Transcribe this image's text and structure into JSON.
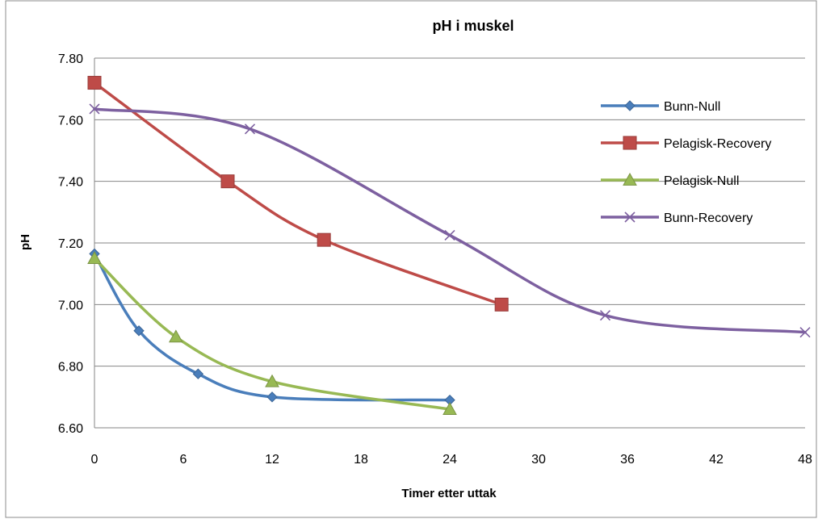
{
  "chart_data": {
    "type": "line",
    "title": "pH i muskel",
    "xlabel": "Timer etter uttak",
    "ylabel": "pH",
    "xlim": [
      0,
      48
    ],
    "ylim": [
      6.6,
      7.8
    ],
    "x_ticks": [
      0,
      6,
      12,
      18,
      24,
      30,
      36,
      42,
      48
    ],
    "y_ticks": [
      6.6,
      6.8,
      7.0,
      7.2,
      7.4,
      7.6,
      7.8
    ],
    "y_tick_labels": [
      "6.60",
      "6.80",
      "7.00",
      "7.20",
      "7.40",
      "7.60",
      "7.80"
    ],
    "x_tick_labels": [
      "0",
      "6",
      "12",
      "18",
      "24",
      "30",
      "36",
      "42",
      "48"
    ],
    "grid": "horizontal",
    "legend_position": "right",
    "smooth": true,
    "series": [
      {
        "name": "Bunn-Null",
        "color": "#4a7ebb",
        "marker": "diamond",
        "points": [
          [
            0,
            7.165
          ],
          [
            3,
            6.915
          ],
          [
            7,
            6.775
          ],
          [
            12,
            6.7
          ],
          [
            24,
            6.69
          ]
        ]
      },
      {
        "name": "Pelagisk-Recovery",
        "color": "#be4b48",
        "marker": "square",
        "points": [
          [
            0,
            7.72
          ],
          [
            9,
            7.4
          ],
          [
            15.5,
            7.21
          ],
          [
            27.5,
            7.0
          ]
        ]
      },
      {
        "name": "Pelagisk-Null",
        "color": "#98b954",
        "marker": "triangle",
        "points": [
          [
            0,
            7.15
          ],
          [
            5.5,
            6.895
          ],
          [
            12,
            6.75
          ],
          [
            24,
            6.66
          ]
        ]
      },
      {
        "name": "Bunn-Recovery",
        "color": "#7d60a0",
        "marker": "x",
        "points": [
          [
            0,
            7.635
          ],
          [
            10.5,
            7.57
          ],
          [
            24,
            7.225
          ],
          [
            34.5,
            6.965
          ],
          [
            48,
            6.91
          ]
        ]
      }
    ]
  }
}
